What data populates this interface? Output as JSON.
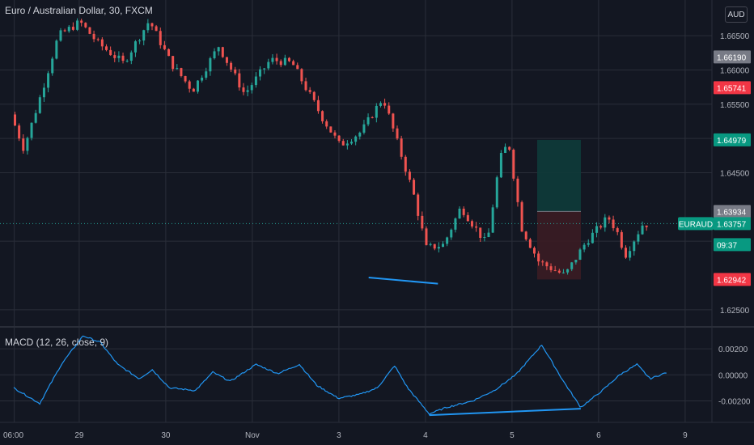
{
  "header": {
    "title": "Euro / Australian Dollar, 30, FXCM",
    "currency_button": "AUD"
  },
  "macd": {
    "label": "MACD (12, 26, close, 9)"
  },
  "colors": {
    "background": "#131722",
    "grid": "#2a2e39",
    "up": "#26a69a",
    "down": "#ef5350",
    "macd_line": "#2196f3",
    "target_zone": "#0e3b3a",
    "stop_zone": "#3b1c24"
  },
  "chart_data": [
    {
      "type": "candlestick",
      "symbol": "EURAUD",
      "yaxis": {
        "range": [
          1.6225,
          1.6695
        ],
        "ticks": [
          "1.66500",
          "1.66000",
          "1.65500",
          "1.65000",
          "1.64500",
          "1.63500",
          "1.62500"
        ]
      },
      "xaxis": {
        "labels": [
          "06:00",
          "29",
          "30",
          "Nov",
          "3",
          "4",
          "5",
          "6",
          "9"
        ]
      },
      "price_labels": [
        {
          "label": "",
          "value": "1.66190",
          "color": "#787b86"
        },
        {
          "label": "",
          "value": "1.65741",
          "color": "#f23645"
        },
        {
          "label": "",
          "value": "1.64979",
          "color": "#089981"
        },
        {
          "label": "",
          "value": "1.63934",
          "color": "#787b86"
        },
        {
          "label": "EURAUD",
          "value": "1.63757",
          "color": "#089981"
        },
        {
          "label": "",
          "value": "09:37",
          "color": "#131722"
        },
        {
          "label": "",
          "value": "1.62942",
          "color": "#f23645"
        }
      ],
      "position": {
        "entry": 1.63934,
        "target": 1.64979,
        "stop": 1.62942
      },
      "trendline": [
        [
          4.1,
          1.6297
        ],
        [
          4.9,
          1.6288
        ]
      ],
      "path": [
        [
          0.0,
          1.6535
        ],
        [
          0.15,
          1.6485
        ],
        [
          0.35,
          1.6565
        ],
        [
          0.55,
          1.665
        ],
        [
          0.8,
          1.667
        ],
        [
          1.0,
          1.664
        ],
        [
          1.3,
          1.661
        ],
        [
          1.6,
          1.6672
        ],
        [
          1.85,
          1.661
        ],
        [
          2.1,
          1.657
        ],
        [
          2.4,
          1.6635
        ],
        [
          2.7,
          1.6565
        ],
        [
          3.0,
          1.6615
        ],
        [
          3.25,
          1.661
        ],
        [
          3.6,
          1.653
        ],
        [
          3.8,
          1.649
        ],
        [
          4.05,
          1.651
        ],
        [
          4.3,
          1.656
        ],
        [
          4.5,
          1.648
        ],
        [
          4.65,
          1.642
        ],
        [
          4.8,
          1.634
        ],
        [
          5.0,
          1.6345
        ],
        [
          5.2,
          1.64
        ],
        [
          5.5,
          1.6345
        ],
        [
          5.65,
          1.647
        ],
        [
          5.75,
          1.6495
        ],
        [
          5.9,
          1.637
        ],
        [
          6.1,
          1.632
        ],
        [
          6.4,
          1.63
        ],
        [
          6.65,
          1.635
        ],
        [
          6.9,
          1.6385
        ],
        [
          7.0,
          1.6365
        ],
        [
          7.1,
          1.633
        ],
        [
          7.3,
          1.6375
        ]
      ]
    },
    {
      "type": "line",
      "name": "MACD",
      "yaxis": {
        "range": [
          -0.0034,
          0.003
        ],
        "ticks": [
          "0.00200",
          "0.00000",
          "-0.00200"
        ]
      },
      "path": [
        [
          0.0,
          -0.001
        ],
        [
          0.3,
          -0.0022
        ],
        [
          0.55,
          0.0008
        ],
        [
          0.8,
          0.003
        ],
        [
          1.0,
          0.0025
        ],
        [
          1.2,
          0.0008
        ],
        [
          1.45,
          -0.0003
        ],
        [
          1.6,
          0.0004
        ],
        [
          1.8,
          -0.001
        ],
        [
          2.1,
          -0.0012
        ],
        [
          2.3,
          0.0002
        ],
        [
          2.5,
          -0.0005
        ],
        [
          2.8,
          0.0008
        ],
        [
          3.05,
          0.0001
        ],
        [
          3.3,
          0.0008
        ],
        [
          3.5,
          -0.0008
        ],
        [
          3.75,
          -0.0018
        ],
        [
          4.0,
          -0.0015
        ],
        [
          4.2,
          -0.001
        ],
        [
          4.4,
          0.0007
        ],
        [
          4.55,
          -0.001
        ],
        [
          4.8,
          -0.003
        ],
        [
          5.0,
          -0.0025
        ],
        [
          5.3,
          -0.002
        ],
        [
          5.55,
          -0.0012
        ],
        [
          5.8,
          0.0
        ],
        [
          6.1,
          0.0023
        ],
        [
          6.35,
          -0.0005
        ],
        [
          6.55,
          -0.0025
        ],
        [
          6.8,
          -0.0012
        ],
        [
          7.0,
          0.0
        ],
        [
          7.2,
          0.0008
        ],
        [
          7.35,
          -0.0003
        ],
        [
          7.55,
          0.0002
        ]
      ],
      "divergence_line": [
        [
          4.8,
          -0.0031
        ],
        [
          6.55,
          -0.0026
        ]
      ]
    }
  ]
}
